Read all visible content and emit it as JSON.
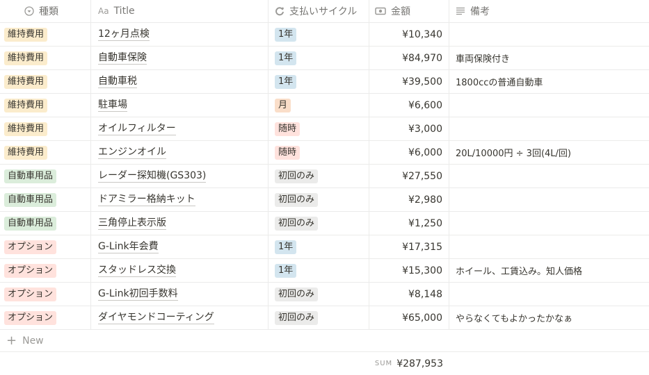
{
  "columns": {
    "kind": {
      "label": "種類",
      "icon": "select-icon"
    },
    "title": {
      "label": "Title",
      "icon": "text-aa-icon"
    },
    "cycle": {
      "label": "支払いサイクル",
      "icon": "cycle-icon"
    },
    "amount": {
      "label": "金額",
      "icon": "money-icon"
    },
    "note": {
      "label": "備考",
      "icon": "lines-icon"
    }
  },
  "tag_colors": {
    "維持費用": "#fbeccc",
    "自動車用品": "#dbeddb",
    "オプション": "#ffe2dd",
    "1年": "#d3e5ef",
    "月": "#fadec9",
    "随時": "#ffe2dd",
    "初回のみ": "#ebebea"
  },
  "rows": [
    {
      "kind": "維持費用",
      "title": "12ヶ月点検",
      "cycle": "1年",
      "amount": "¥10,340",
      "note": ""
    },
    {
      "kind": "維持費用",
      "title": "自動車保険",
      "cycle": "1年",
      "amount": "¥84,970",
      "note": "車両保険付き"
    },
    {
      "kind": "維持費用",
      "title": "自動車税",
      "cycle": "1年",
      "amount": "¥39,500",
      "note": "1800ccの普通自動車"
    },
    {
      "kind": "維持費用",
      "title": "駐車場",
      "cycle": "月",
      "amount": "¥6,600",
      "note": ""
    },
    {
      "kind": "維持費用",
      "title": "オイルフィルター",
      "cycle": "随時",
      "amount": "¥3,000",
      "note": ""
    },
    {
      "kind": "維持費用",
      "title": "エンジンオイル",
      "cycle": "随時",
      "amount": "¥6,000",
      "note": "20L/10000円 ÷ 3回(4L/回)"
    },
    {
      "kind": "自動車用品",
      "title": "レーダー探知機(GS303)",
      "cycle": "初回のみ",
      "amount": "¥27,550",
      "note": ""
    },
    {
      "kind": "自動車用品",
      "title": "ドアミラー格納キット",
      "cycle": "初回のみ",
      "amount": "¥2,980",
      "note": ""
    },
    {
      "kind": "自動車用品",
      "title": "三角停止表示版",
      "cycle": "初回のみ",
      "amount": "¥1,250",
      "note": ""
    },
    {
      "kind": "オプション",
      "title": "G-Link年会費",
      "cycle": "1年",
      "amount": "¥17,315",
      "note": ""
    },
    {
      "kind": "オプション",
      "title": "スタッドレス交換",
      "cycle": "1年",
      "amount": "¥15,300",
      "note": "ホイール、工賃込み。知人価格"
    },
    {
      "kind": "オプション",
      "title": "G-Link初回手数料",
      "cycle": "初回のみ",
      "amount": "¥8,148",
      "note": ""
    },
    {
      "kind": "オプション",
      "title": "ダイヤモンドコーティング",
      "cycle": "初回のみ",
      "amount": "¥65,000",
      "note": "やらなくてもよかったかなぁ"
    }
  ],
  "new_label": "New",
  "sum": {
    "label": "SUM",
    "value": "¥287,953"
  }
}
